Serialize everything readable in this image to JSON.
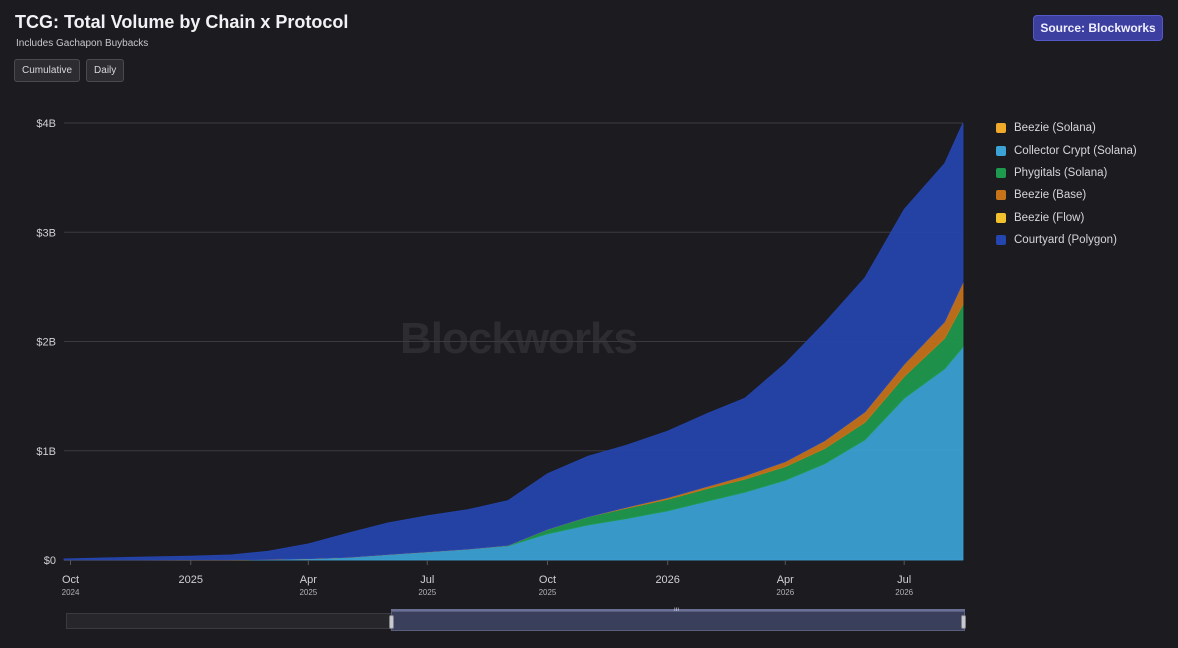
{
  "header": {
    "title": "TCG: Total Volume by Chain x Protocol",
    "subtitle": "Includes Gachapon Buybacks",
    "source_label": "Source: Blockworks",
    "watermark": "Blockworks"
  },
  "toggles": [
    {
      "label": "Cumulative"
    },
    {
      "label": "Daily"
    }
  ],
  "navigator": {
    "grip": "III"
  },
  "chart_data": {
    "type": "area",
    "stacked": true,
    "grid": "horizontal",
    "legend_position": "right",
    "ylim": [
      0,
      4000000000
    ],
    "y_ticks": [
      {
        "value": 0,
        "label": "$0"
      },
      {
        "value": 1000000000,
        "label": "$1B"
      },
      {
        "value": 2000000000,
        "label": "$2B"
      },
      {
        "value": 3000000000,
        "label": "$3B"
      },
      {
        "value": 4000000000,
        "label": "$4B"
      }
    ],
    "x_range": [
      "2024-09-26",
      "2026-08-15"
    ],
    "x_ticks": [
      {
        "date": "2024-10-01",
        "label": "Oct",
        "sub": "2024"
      },
      {
        "date": "2025-01-01",
        "label": "2025",
        "sub": ""
      },
      {
        "date": "2025-04-01",
        "label": "Apr",
        "sub": "2025"
      },
      {
        "date": "2025-07-01",
        "label": "Jul",
        "sub": "2025"
      },
      {
        "date": "2025-10-01",
        "label": "Oct",
        "sub": "2025"
      },
      {
        "date": "2026-01-01",
        "label": "2026",
        "sub": ""
      },
      {
        "date": "2026-04-01",
        "label": "Apr",
        "sub": "2026"
      },
      {
        "date": "2026-07-01",
        "label": "Jul",
        "sub": "2026"
      }
    ],
    "x": [
      "2024-09-26",
      "2024-11-01",
      "2024-12-01",
      "2025-01-01",
      "2025-02-01",
      "2025-03-01",
      "2025-04-01",
      "2025-05-01",
      "2025-06-01",
      "2025-07-01",
      "2025-08-01",
      "2025-09-01",
      "2025-10-01",
      "2025-11-01",
      "2025-12-01",
      "2026-01-01",
      "2026-02-01",
      "2026-03-01",
      "2026-04-01",
      "2026-05-01",
      "2026-06-01",
      "2026-07-01",
      "2026-08-01",
      "2026-08-15"
    ],
    "series": [
      {
        "name": "Collector Crypt (Solana)",
        "color": "#3ba3d6",
        "values": [
          0,
          0,
          0,
          1,
          2,
          5,
          12,
          25,
          50,
          75,
          100,
          130,
          240,
          320,
          380,
          450,
          540,
          620,
          730,
          880,
          1100,
          1480,
          1750,
          1950
        ]
      },
      {
        "name": "Phygitals (Solana)",
        "color": "#1e9a4e",
        "values": [
          0,
          0,
          0,
          0,
          0,
          0,
          0,
          0,
          0,
          0,
          0,
          5,
          40,
          75,
          95,
          105,
          115,
          120,
          125,
          140,
          160,
          200,
          280,
          390
        ]
      },
      {
        "name": "Beezie (Base)",
        "color": "#c8731a",
        "values": [
          0,
          0,
          0,
          0,
          0,
          0,
          0,
          0,
          0,
          0,
          0,
          0,
          0,
          0,
          8,
          15,
          20,
          30,
          45,
          70,
          95,
          110,
          150,
          200
        ]
      },
      {
        "name": "Beezie (Flow)",
        "color": "#f2c12e",
        "values": [
          0,
          0,
          0,
          0,
          0,
          0,
          0,
          0,
          0,
          0,
          0,
          0,
          0,
          0,
          0,
          0,
          0,
          0,
          0,
          0,
          0,
          0,
          0,
          0
        ]
      },
      {
        "name": "Beezie (Solana)",
        "color": "#f0a92a",
        "values": [
          0,
          0,
          0,
          0,
          0,
          0,
          0,
          0,
          0,
          0,
          0,
          0,
          0,
          0,
          0,
          0,
          0,
          0,
          0,
          0,
          0,
          0,
          0,
          0
        ]
      },
      {
        "name": "Courtyard (Polygon)",
        "color": "#2545b0",
        "values": [
          10,
          20,
          28,
          35,
          45,
          75,
          135,
          220,
          290,
          330,
          360,
          410,
          510,
          555,
          570,
          610,
          670,
          710,
          900,
          1080,
          1230,
          1420,
          1450,
          1460
        ]
      }
    ],
    "series_unit": "millions USD",
    "legend": [
      {
        "name": "Beezie (Solana)",
        "color": "#f0a92a"
      },
      {
        "name": "Collector Crypt (Solana)",
        "color": "#3ba3d6"
      },
      {
        "name": "Phygitals (Solana)",
        "color": "#1e9a4e"
      },
      {
        "name": "Beezie (Base)",
        "color": "#c8731a"
      },
      {
        "name": "Beezie (Flow)",
        "color": "#f2c12e"
      },
      {
        "name": "Courtyard (Polygon)",
        "color": "#2545b0"
      }
    ]
  }
}
